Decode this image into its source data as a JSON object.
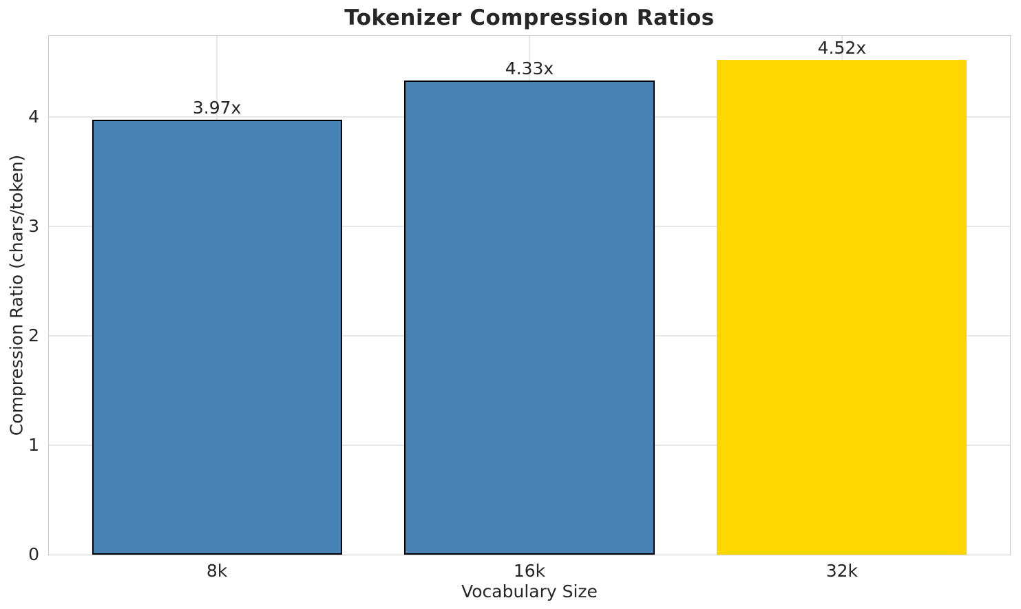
{
  "chart_data": {
    "type": "bar",
    "title": "Tokenizer Compression Ratios",
    "xlabel": "Vocabulary Size",
    "ylabel": "Compression Ratio (chars/token)",
    "categories": [
      "8k",
      "16k",
      "32k"
    ],
    "values": [
      3.97,
      4.33,
      4.52
    ],
    "bar_labels": [
      "3.97x",
      "4.33x",
      "4.52x"
    ],
    "yticks": [
      0,
      1,
      2,
      3,
      4
    ],
    "ylim": [
      0,
      4.746
    ],
    "bar_colors": [
      "#4682B4",
      "#4682B4",
      "#FFD700"
    ],
    "bar_edge_colors": [
      "#000000",
      "#000000",
      "none"
    ],
    "grid": true,
    "legend": "none",
    "colors": {
      "accent_blue": "#4682B4",
      "highlight_gold": "#FFD700",
      "grid": "#e7e7e7",
      "spine": "#cccccc",
      "text": "#262626",
      "background": "#ffffff"
    }
  }
}
